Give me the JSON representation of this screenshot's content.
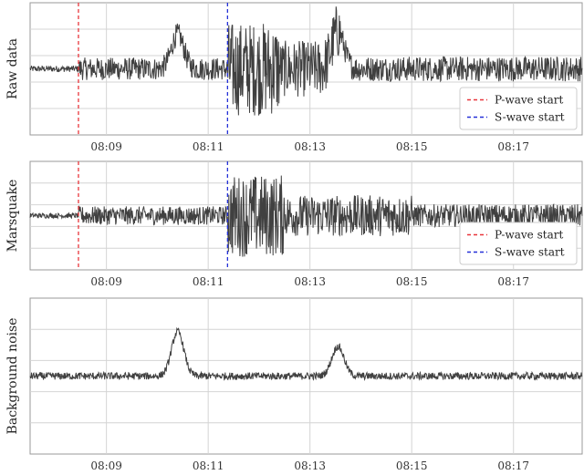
{
  "chart_data": [
    {
      "type": "line",
      "ylabel": "Raw data",
      "x_tick_labels": [
        "08:09",
        "08:11",
        "08:13",
        "08:15",
        "08:17"
      ],
      "x_tick_minutes": [
        9,
        11,
        13,
        15,
        17
      ],
      "xlim_minutes": [
        7.5,
        18.35
      ],
      "grid": true,
      "y_gridlines": 4,
      "legend": {
        "placement": "bottom-right",
        "entries": [
          {
            "label": "P-wave start",
            "color": "#e8353b",
            "style": "dashed"
          },
          {
            "label": "S-wave start",
            "color": "#2430d8",
            "style": "dashed"
          }
        ]
      },
      "vlines": [
        {
          "series": "P-wave start",
          "x_minute": 8.45,
          "color": "#e8353b"
        },
        {
          "series": "S-wave start",
          "x_minute": 11.38,
          "color": "#2430d8"
        }
      ],
      "trace": {
        "baseline": 0,
        "segments": [
          {
            "from": 7.5,
            "to": 8.45,
            "amplitude": 0.05
          },
          {
            "from": 8.45,
            "to": 11.38,
            "amplitude": 0.18
          },
          {
            "from": 11.38,
            "to": 12.4,
            "amplitude": 0.75
          },
          {
            "from": 12.4,
            "to": 13.6,
            "amplitude": 0.45
          },
          {
            "from": 13.6,
            "to": 18.35,
            "amplitude": 0.2
          }
        ],
        "bumps": [
          {
            "x_minute": 10.4,
            "height": 0.55
          },
          {
            "x_minute": 13.55,
            "height": 0.6
          }
        ]
      }
    },
    {
      "type": "line",
      "ylabel": "Marsquake",
      "x_tick_labels": [
        "08:09",
        "08:11",
        "08:13",
        "08:15",
        "08:17"
      ],
      "x_tick_minutes": [
        9,
        11,
        13,
        15,
        17
      ],
      "xlim_minutes": [
        7.5,
        18.35
      ],
      "grid": true,
      "y_gridlines": 4,
      "legend": {
        "placement": "bottom-right",
        "entries": [
          {
            "label": "P-wave start",
            "color": "#e8353b",
            "style": "dashed"
          },
          {
            "label": "S-wave start",
            "color": "#2430d8",
            "style": "dashed"
          }
        ]
      },
      "vlines": [
        {
          "series": "P-wave start",
          "x_minute": 8.45,
          "color": "#e8353b"
        },
        {
          "series": "S-wave start",
          "x_minute": 11.38,
          "color": "#2430d8"
        }
      ],
      "trace": {
        "baseline": 0,
        "segments": [
          {
            "from": 7.5,
            "to": 8.45,
            "amplitude": 0.05
          },
          {
            "from": 8.45,
            "to": 11.38,
            "amplitude": 0.18
          },
          {
            "from": 11.38,
            "to": 12.5,
            "amplitude": 0.8
          },
          {
            "from": 12.5,
            "to": 15.0,
            "amplitude": 0.4
          },
          {
            "from": 15.0,
            "to": 18.35,
            "amplitude": 0.22
          }
        ],
        "bumps": []
      }
    },
    {
      "type": "line",
      "ylabel": "Background noise",
      "x_tick_labels": [
        "08:09",
        "08:11",
        "08:13",
        "08:15",
        "08:17"
      ],
      "x_tick_minutes": [
        9,
        11,
        13,
        15,
        17
      ],
      "xlim_minutes": [
        7.5,
        18.35
      ],
      "grid": true,
      "y_gridlines": 4,
      "legend": null,
      "vlines": [],
      "trace": {
        "baseline": 0,
        "segments": [
          {
            "from": 7.5,
            "to": 18.35,
            "amplitude": 0.05
          }
        ],
        "bumps": [
          {
            "x_minute": 10.4,
            "height": 0.6
          },
          {
            "x_minute": 13.55,
            "height": 0.4
          }
        ]
      }
    }
  ]
}
